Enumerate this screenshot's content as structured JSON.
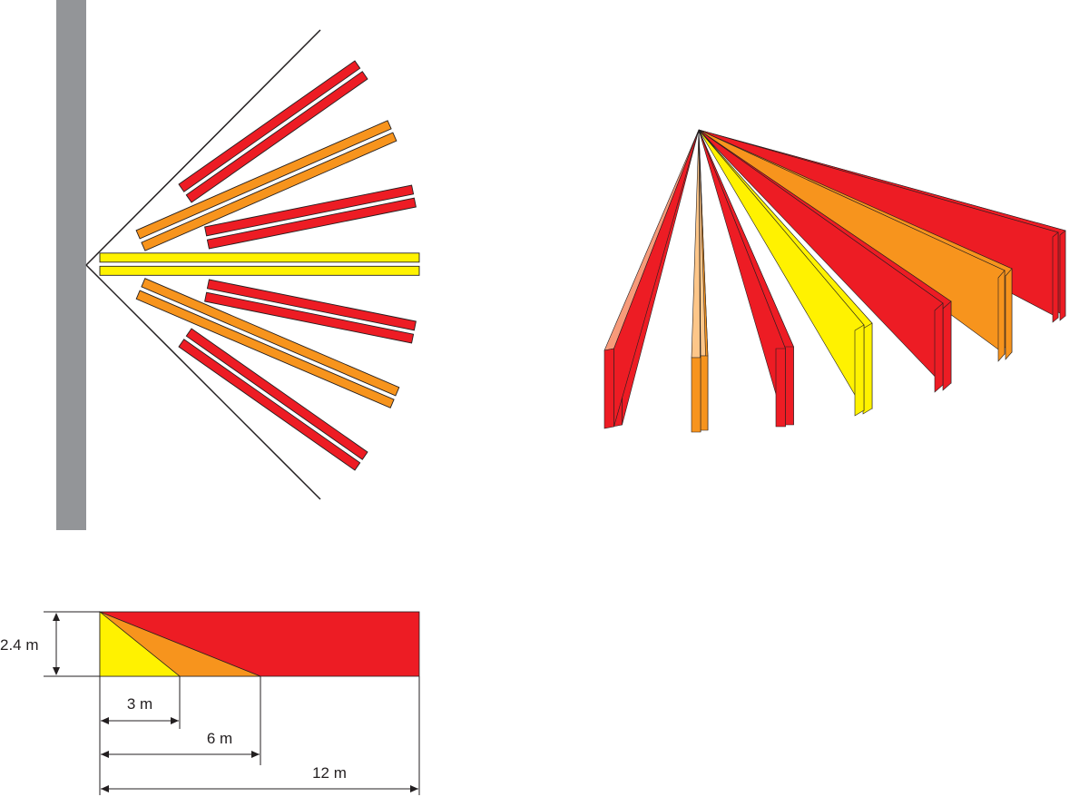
{
  "colors": {
    "wall": "#939598",
    "red": "#ed1c24",
    "orange": "#f7941d",
    "yellow": "#fff200",
    "red_light": "#f79a7a",
    "orange_light": "#fdc689",
    "yellow_light": "#fff799",
    "outline": "#231f20",
    "background": "#ffffff"
  },
  "top_view": {
    "description_zones": [
      "red",
      "orange",
      "red",
      "yellow",
      "red",
      "orange",
      "red"
    ]
  },
  "perspective_view": {
    "zones": [
      "red",
      "orange",
      "red",
      "yellow",
      "red",
      "orange",
      "red"
    ]
  },
  "side_view": {
    "height_label": "2.4 m",
    "distance_labels": [
      "3 m",
      "6 m",
      "12 m"
    ]
  }
}
